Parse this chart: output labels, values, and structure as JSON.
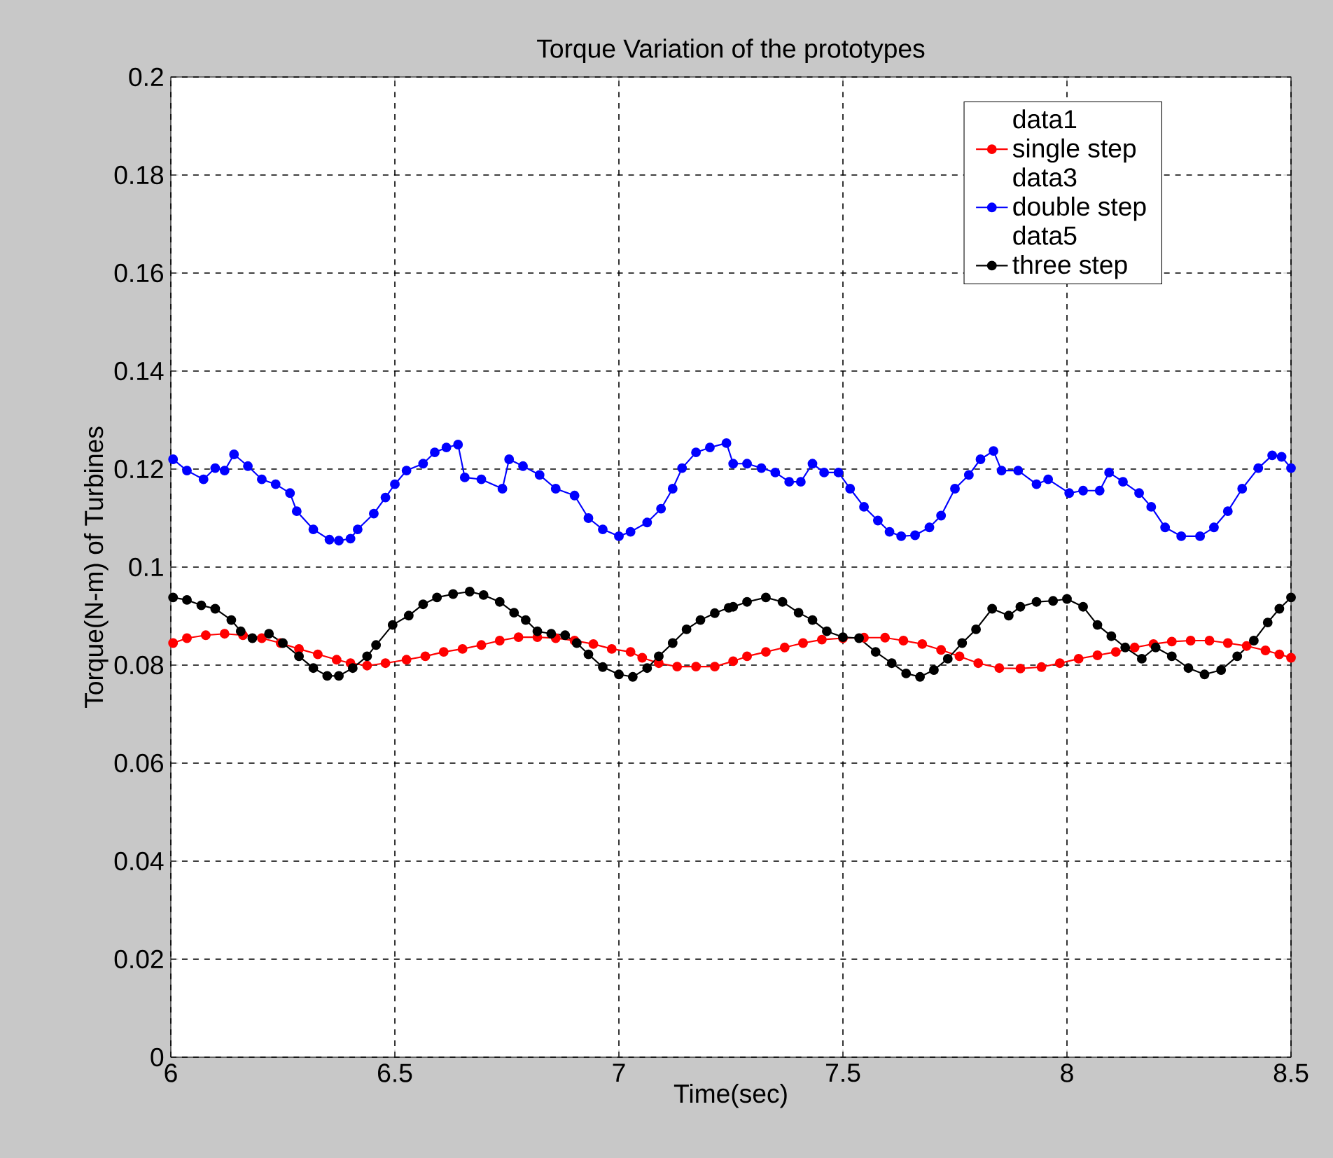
{
  "chart_data": {
    "type": "line",
    "title": "Torque Variation of the prototypes",
    "xlabel": "Time(sec)",
    "ylabel": "Torque(N-m) of Turbines",
    "xlim": [
      6,
      8.5
    ],
    "xticks": [
      6,
      6.5,
      7,
      7.5,
      8,
      8.5
    ],
    "ylim": [
      0,
      0.2
    ],
    "yticks": [
      0,
      0.02,
      0.04,
      0.06,
      0.08,
      0.1,
      0.12,
      0.14,
      0.16,
      0.18,
      0.2
    ],
    "grid": true,
    "legend": "top right",
    "marker": "circle",
    "series": [
      {
        "name": "data1"
      },
      {
        "name": "single step",
        "color": "#ff0000",
        "x": [
          6.005,
          6.036,
          6.078,
          6.12,
          6.161,
          6.203,
          6.245,
          6.286,
          6.328,
          6.37,
          6.401,
          6.438,
          6.479,
          6.526,
          6.568,
          6.609,
          6.651,
          6.693,
          6.734,
          6.776,
          6.818,
          6.859,
          6.901,
          6.943,
          6.984,
          7.026,
          7.052,
          7.089,
          7.13,
          7.172,
          7.214,
          7.255,
          7.286,
          7.328,
          7.37,
          7.411,
          7.453,
          7.5,
          7.547,
          7.594,
          7.635,
          7.677,
          7.719,
          7.76,
          7.802,
          7.849,
          7.896,
          7.943,
          7.984,
          8.026,
          8.068,
          8.109,
          8.151,
          8.193,
          8.234,
          8.276,
          8.318,
          8.359,
          8.401,
          8.443,
          8.474,
          8.5
        ],
        "values": [
          0.0845,
          0.0855,
          0.0861,
          0.0864,
          0.0861,
          0.0855,
          0.0845,
          0.0833,
          0.0822,
          0.0811,
          0.0804,
          0.0799,
          0.0804,
          0.0811,
          0.0818,
          0.0827,
          0.0833,
          0.0841,
          0.085,
          0.0857,
          0.0857,
          0.0855,
          0.085,
          0.0843,
          0.0833,
          0.0827,
          0.0815,
          0.0804,
          0.0797,
          0.0797,
          0.0797,
          0.0808,
          0.0818,
          0.0827,
          0.0836,
          0.0845,
          0.0852,
          0.0855,
          0.0856,
          0.0856,
          0.085,
          0.0843,
          0.0831,
          0.0818,
          0.0804,
          0.0794,
          0.0793,
          0.0796,
          0.0804,
          0.0813,
          0.082,
          0.0827,
          0.0836,
          0.0843,
          0.0848,
          0.085,
          0.085,
          0.0845,
          0.0839,
          0.083,
          0.0822,
          0.0815
        ]
      },
      {
        "name": "data3"
      },
      {
        "name": "double step",
        "color": "#0000ff",
        "x": [
          6.005,
          6.036,
          6.073,
          6.099,
          6.12,
          6.141,
          6.172,
          6.203,
          6.234,
          6.266,
          6.281,
          6.318,
          6.354,
          6.375,
          6.401,
          6.417,
          6.453,
          6.479,
          6.5,
          6.526,
          6.563,
          6.589,
          6.615,
          6.641,
          6.656,
          6.693,
          6.74,
          6.755,
          6.786,
          6.823,
          6.859,
          6.901,
          6.932,
          6.964,
          7.0,
          7.026,
          7.063,
          7.094,
          7.12,
          7.141,
          7.172,
          7.203,
          7.24,
          7.255,
          7.286,
          7.318,
          7.349,
          7.38,
          7.406,
          7.432,
          7.458,
          7.49,
          7.516,
          7.547,
          7.578,
          7.604,
          7.63,
          7.661,
          7.693,
          7.719,
          7.75,
          7.781,
          7.807,
          7.836,
          7.854,
          7.891,
          7.932,
          7.958,
          8.005,
          8.036,
          8.073,
          8.094,
          8.125,
          8.161,
          8.188,
          8.219,
          8.255,
          8.297,
          8.328,
          8.359,
          8.391,
          8.427,
          8.458,
          8.479,
          8.5
        ],
        "values": [
          0.122,
          0.1197,
          0.1179,
          0.1202,
          0.1197,
          0.123,
          0.1206,
          0.1179,
          0.1169,
          0.1151,
          0.1114,
          0.1077,
          0.1056,
          0.1054,
          0.1058,
          0.1077,
          0.1109,
          0.1142,
          0.1169,
          0.1197,
          0.1211,
          0.1234,
          0.1244,
          0.125,
          0.1183,
          0.1179,
          0.116,
          0.122,
          0.1206,
          0.1188,
          0.116,
          0.1146,
          0.11,
          0.1077,
          0.1063,
          0.1072,
          0.1091,
          0.1119,
          0.116,
          0.1202,
          0.1234,
          0.1244,
          0.1253,
          0.1211,
          0.1211,
          0.1202,
          0.1193,
          0.1174,
          0.1174,
          0.1211,
          0.1193,
          0.1193,
          0.116,
          0.1123,
          0.1095,
          0.1072,
          0.1063,
          0.1065,
          0.1081,
          0.1105,
          0.116,
          0.1188,
          0.122,
          0.1237,
          0.1197,
          0.1197,
          0.1169,
          0.1179,
          0.1151,
          0.1156,
          0.1156,
          0.1193,
          0.1174,
          0.1151,
          0.1123,
          0.1081,
          0.1063,
          0.1063,
          0.1081,
          0.1114,
          0.116,
          0.1202,
          0.1228,
          0.1225,
          0.1202
        ]
      },
      {
        "name": "data5"
      },
      {
        "name": "three step",
        "color": "#000000",
        "x": [
          6.005,
          6.036,
          6.068,
          6.099,
          6.135,
          6.156,
          6.182,
          6.219,
          6.25,
          6.286,
          6.318,
          6.349,
          6.375,
          6.406,
          6.438,
          6.458,
          6.495,
          6.531,
          6.563,
          6.594,
          6.63,
          6.667,
          6.698,
          6.734,
          6.766,
          6.792,
          6.818,
          6.849,
          6.88,
          6.906,
          6.932,
          6.964,
          7.0,
          7.031,
          7.063,
          7.089,
          7.12,
          7.151,
          7.182,
          7.214,
          7.245,
          7.255,
          7.286,
          7.328,
          7.365,
          7.401,
          7.432,
          7.464,
          7.5,
          7.536,
          7.573,
          7.609,
          7.641,
          7.672,
          7.703,
          7.734,
          7.766,
          7.797,
          7.833,
          7.87,
          7.896,
          7.932,
          7.969,
          8.0,
          8.036,
          8.068,
          8.099,
          8.13,
          8.167,
          8.198,
          8.234,
          8.271,
          8.307,
          8.344,
          8.38,
          8.417,
          8.448,
          8.474,
          8.5
        ],
        "values": [
          0.0938,
          0.0933,
          0.0922,
          0.0915,
          0.0892,
          0.0869,
          0.0855,
          0.0864,
          0.0845,
          0.0818,
          0.0794,
          0.0778,
          0.0778,
          0.0794,
          0.0818,
          0.0841,
          0.0882,
          0.0901,
          0.0924,
          0.0938,
          0.0945,
          0.095,
          0.0943,
          0.0929,
          0.0907,
          0.0892,
          0.0869,
          0.0864,
          0.0861,
          0.0845,
          0.0822,
          0.0796,
          0.0781,
          0.0776,
          0.0794,
          0.0818,
          0.0845,
          0.0873,
          0.0892,
          0.0906,
          0.0917,
          0.0919,
          0.0929,
          0.0938,
          0.0929,
          0.0907,
          0.0892,
          0.0869,
          0.0857,
          0.0855,
          0.0827,
          0.0804,
          0.0783,
          0.0776,
          0.079,
          0.0813,
          0.0845,
          0.0873,
          0.0915,
          0.0901,
          0.0919,
          0.0929,
          0.0931,
          0.0935,
          0.0919,
          0.0882,
          0.0859,
          0.0836,
          0.0813,
          0.0836,
          0.0818,
          0.0794,
          0.0781,
          0.079,
          0.0818,
          0.085,
          0.0887,
          0.0915,
          0.0938
        ]
      }
    ]
  }
}
